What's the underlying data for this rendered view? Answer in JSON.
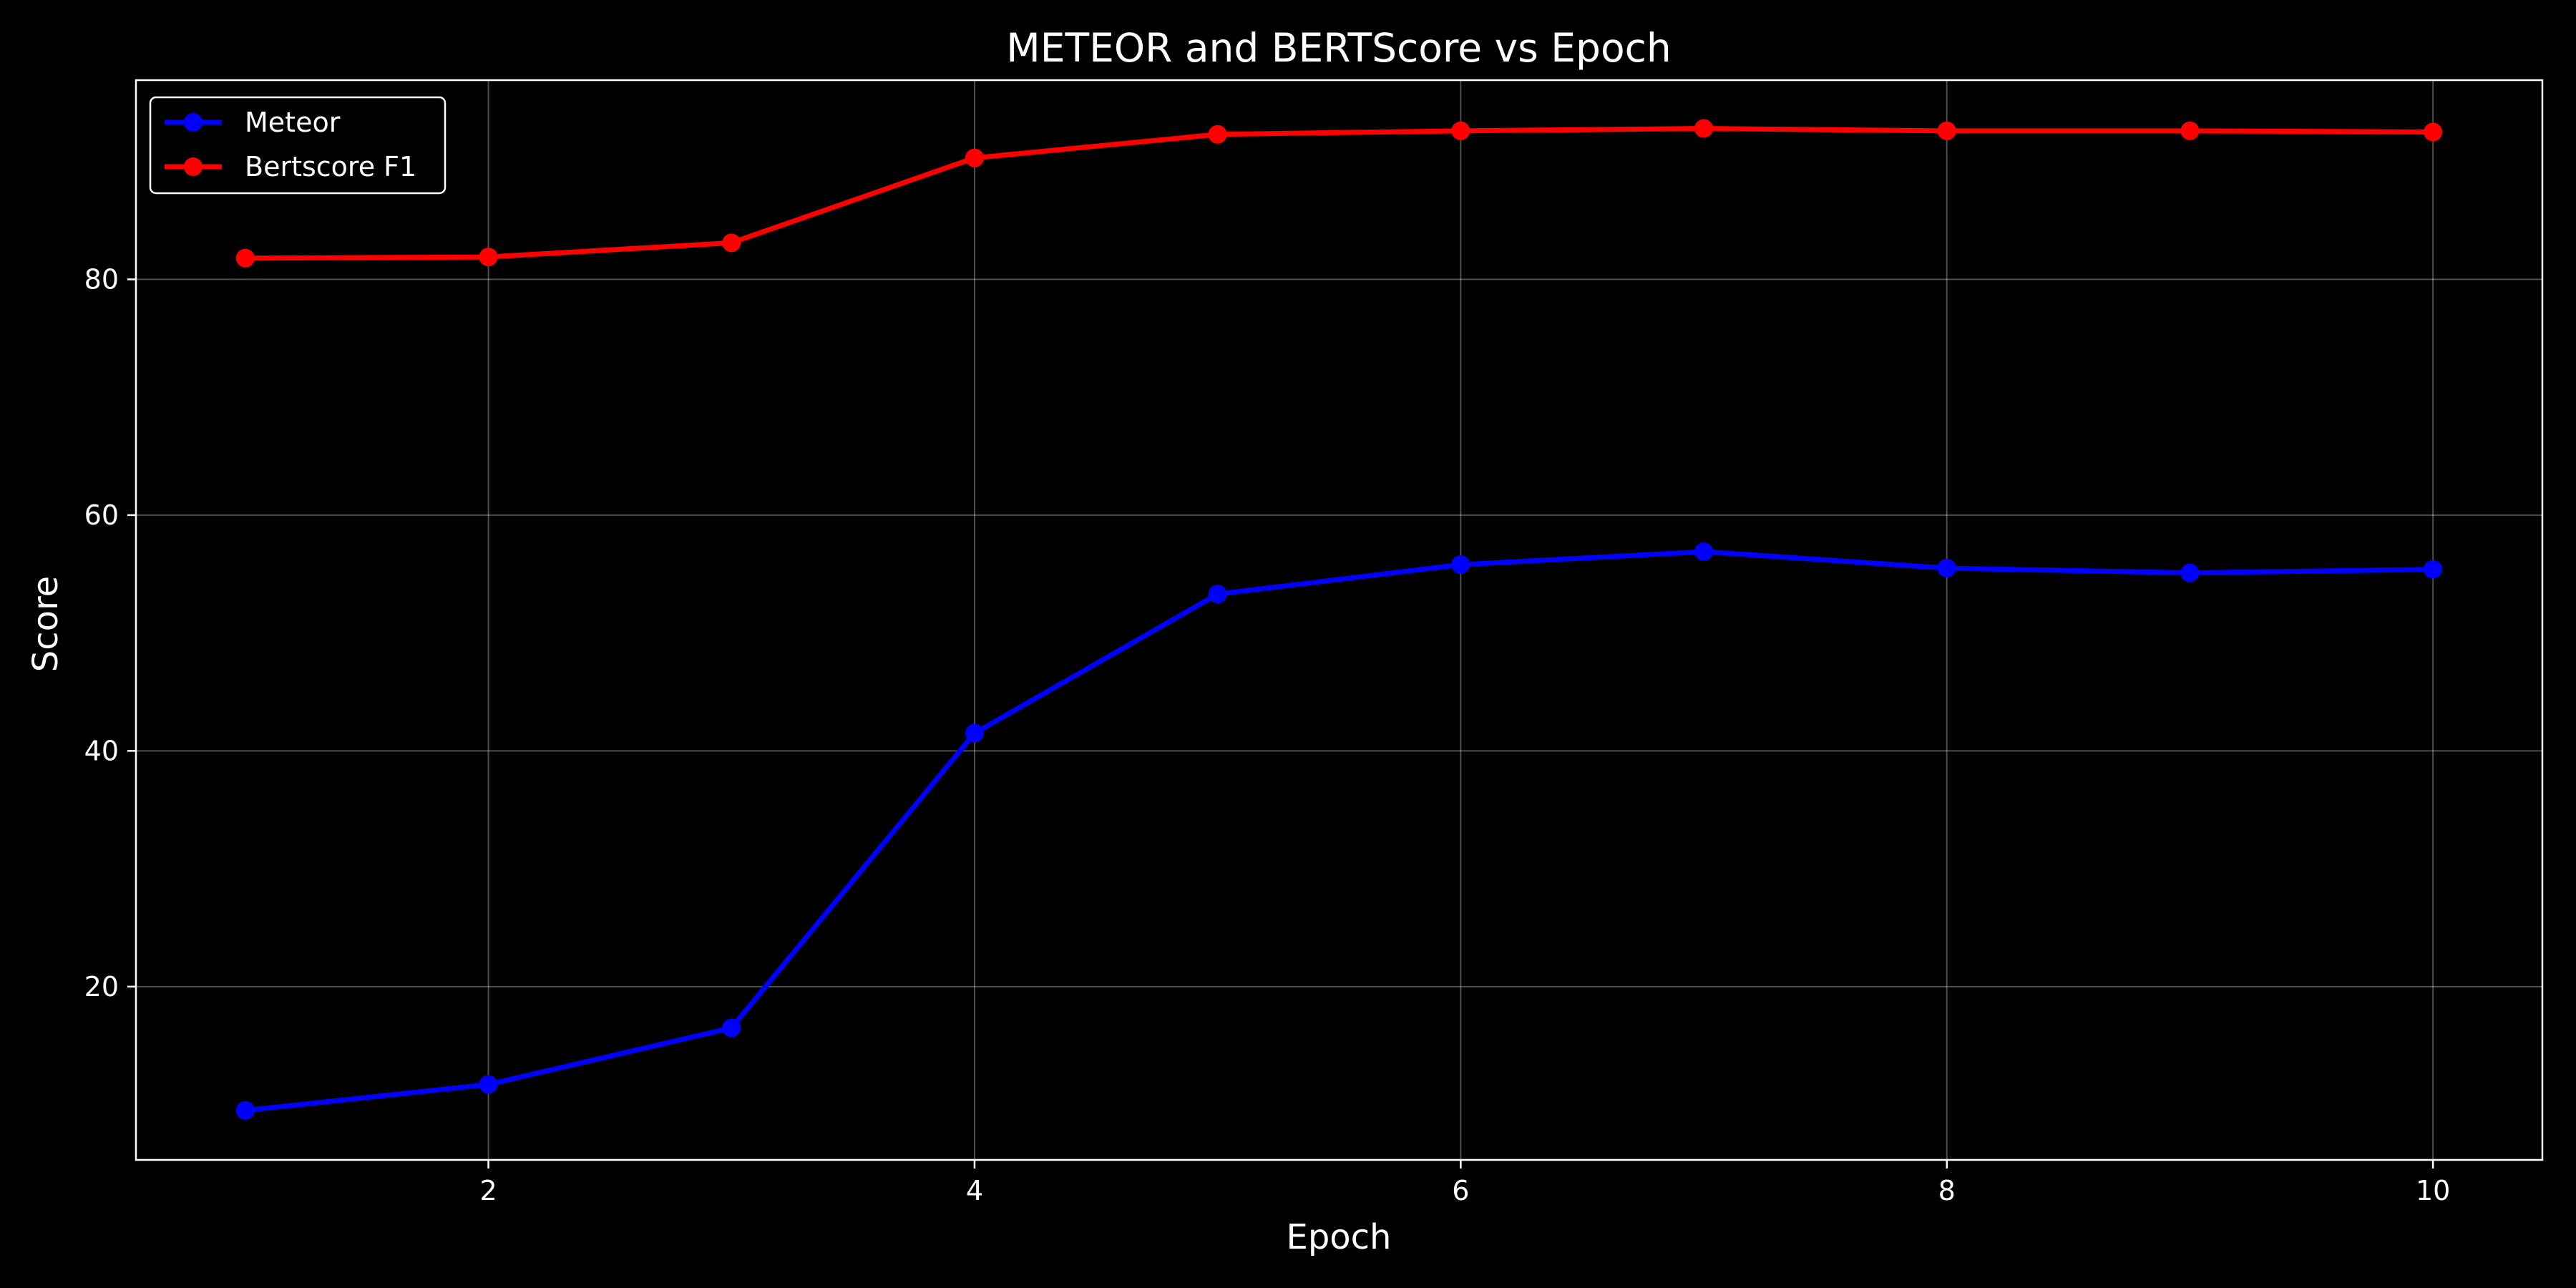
{
  "chart_data": {
    "type": "line",
    "title": "METEOR and BERTScore vs Epoch",
    "xlabel": "Epoch",
    "ylabel": "Score",
    "x": [
      1,
      2,
      3,
      4,
      5,
      6,
      7,
      8,
      9,
      10
    ],
    "xlim": [
      0.55,
      10.45
    ],
    "ylim": [
      5.3,
      96.9
    ],
    "xticks": [
      2,
      4,
      6,
      8,
      10
    ],
    "yticks": [
      20,
      40,
      60,
      80
    ],
    "grid": true,
    "legend_position": "top-left",
    "background": "#000000",
    "series": [
      {
        "name": "Meteor",
        "color": "#0000ff",
        "values": [
          9.5,
          11.7,
          16.5,
          41.5,
          53.3,
          55.8,
          56.9,
          55.5,
          55.1,
          55.4
        ]
      },
      {
        "name": "Bertscore F1",
        "color": "#ff0000",
        "values": [
          81.8,
          81.9,
          83.1,
          90.3,
          92.3,
          92.6,
          92.8,
          92.6,
          92.6,
          92.5
        ]
      }
    ]
  }
}
